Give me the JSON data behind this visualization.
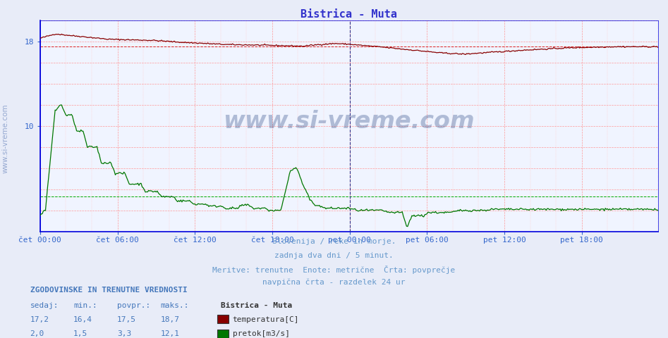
{
  "title": "Bistrica - Muta",
  "title_color": "#3333cc",
  "bg_color": "#e8ecf8",
  "plot_bg_color": "#f0f4ff",
  "grid_color": "#ff9999",
  "axis_color": "#0000dd",
  "tick_color": "#3366cc",
  "n_points": 576,
  "temp_color": "#880000",
  "flow_color": "#007700",
  "temp_avg_color": "#dd2222",
  "flow_avg_color": "#00aa00",
  "temp_min": 16.4,
  "temp_max": 18.7,
  "temp_avg": 17.5,
  "temp_cur": 17.2,
  "flow_min": 1.5,
  "flow_max": 12.1,
  "flow_avg": 3.3,
  "flow_cur": 2.0,
  "ylim_min": 0,
  "ylim_max": 20,
  "watermark": "www.si-vreme.com",
  "watermark_color": "#1a3a7a",
  "watermark_alpha": 0.3,
  "sidebar_text": "www.si-vreme.com",
  "sidebar_color": "#4466aa",
  "sidebar_alpha": 0.5,
  "footer_lines": [
    "Slovenija / reke in morje.",
    "zadnja dva dni / 5 minut.",
    "Meritve: trenutne  Enote: metrične  Črta: povprečje",
    "navpična črta - razdelek 24 ur"
  ],
  "footer_color": "#6699cc",
  "legend_title": "Bistrica - Muta",
  "legend_items": [
    "temperatura[C]",
    "pretok[m3/s]"
  ],
  "legend_colors": [
    "#880000",
    "#007700"
  ],
  "table_header": "ZGODOVINSKE IN TRENUTNE VREDNOSTI",
  "table_cols": [
    "sedaj:",
    "min.:",
    "povpr.:",
    "maks.:"
  ],
  "table_rows": [
    [
      "17,2",
      "16,4",
      "17,5",
      "18,7"
    ],
    [
      "2,0",
      "1,5",
      "3,3",
      "12,1"
    ]
  ],
  "table_color": "#4477bb",
  "x_tick_labels": [
    "čet 00:00",
    "čet 06:00",
    "čet 12:00",
    "čet 18:00",
    "pet 00:00",
    "pet 06:00",
    "pet 12:00",
    "pet 18:00"
  ]
}
